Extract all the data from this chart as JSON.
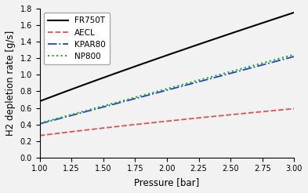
{
  "title": "",
  "xlabel": "Pressure [bar]",
  "ylabel": "H2 depletion rate [g/s]",
  "xlim": [
    1.0,
    3.0
  ],
  "ylim": [
    0.0,
    1.8
  ],
  "xticks": [
    1.0,
    1.25,
    1.5,
    1.75,
    2.0,
    2.25,
    2.5,
    2.75,
    3.0
  ],
  "yticks": [
    0.0,
    0.2,
    0.4,
    0.6,
    0.8,
    1.0,
    1.2,
    1.4,
    1.6,
    1.8
  ],
  "series": [
    {
      "label": "FR750T",
      "color": "black",
      "linestyle": "-",
      "linewidth": 1.5,
      "coef": 0.68,
      "exponent": 0.862
    },
    {
      "label": "AECL",
      "color": "#e05050",
      "linestyle": "--",
      "linewidth": 1.3,
      "coef": 0.265,
      "exponent": 0.73
    },
    {
      "label": "KPAR80",
      "color": "#2244cc",
      "linestyle": "-.",
      "linewidth": 1.3,
      "coef": 0.407,
      "exponent": 1.0
    },
    {
      "label": "NP800",
      "color": "#22aa22",
      "linestyle": ":",
      "linewidth": 1.5,
      "coef": 0.415,
      "exponent": 1.0
    }
  ],
  "figsize": [
    3.93,
    2.46
  ],
  "dpi": 100,
  "legend_loc": "upper left",
  "legend_fontsize": 7.5,
  "tick_fontsize": 7,
  "label_fontsize": 8.5,
  "background_color": "#f2f2f2"
}
